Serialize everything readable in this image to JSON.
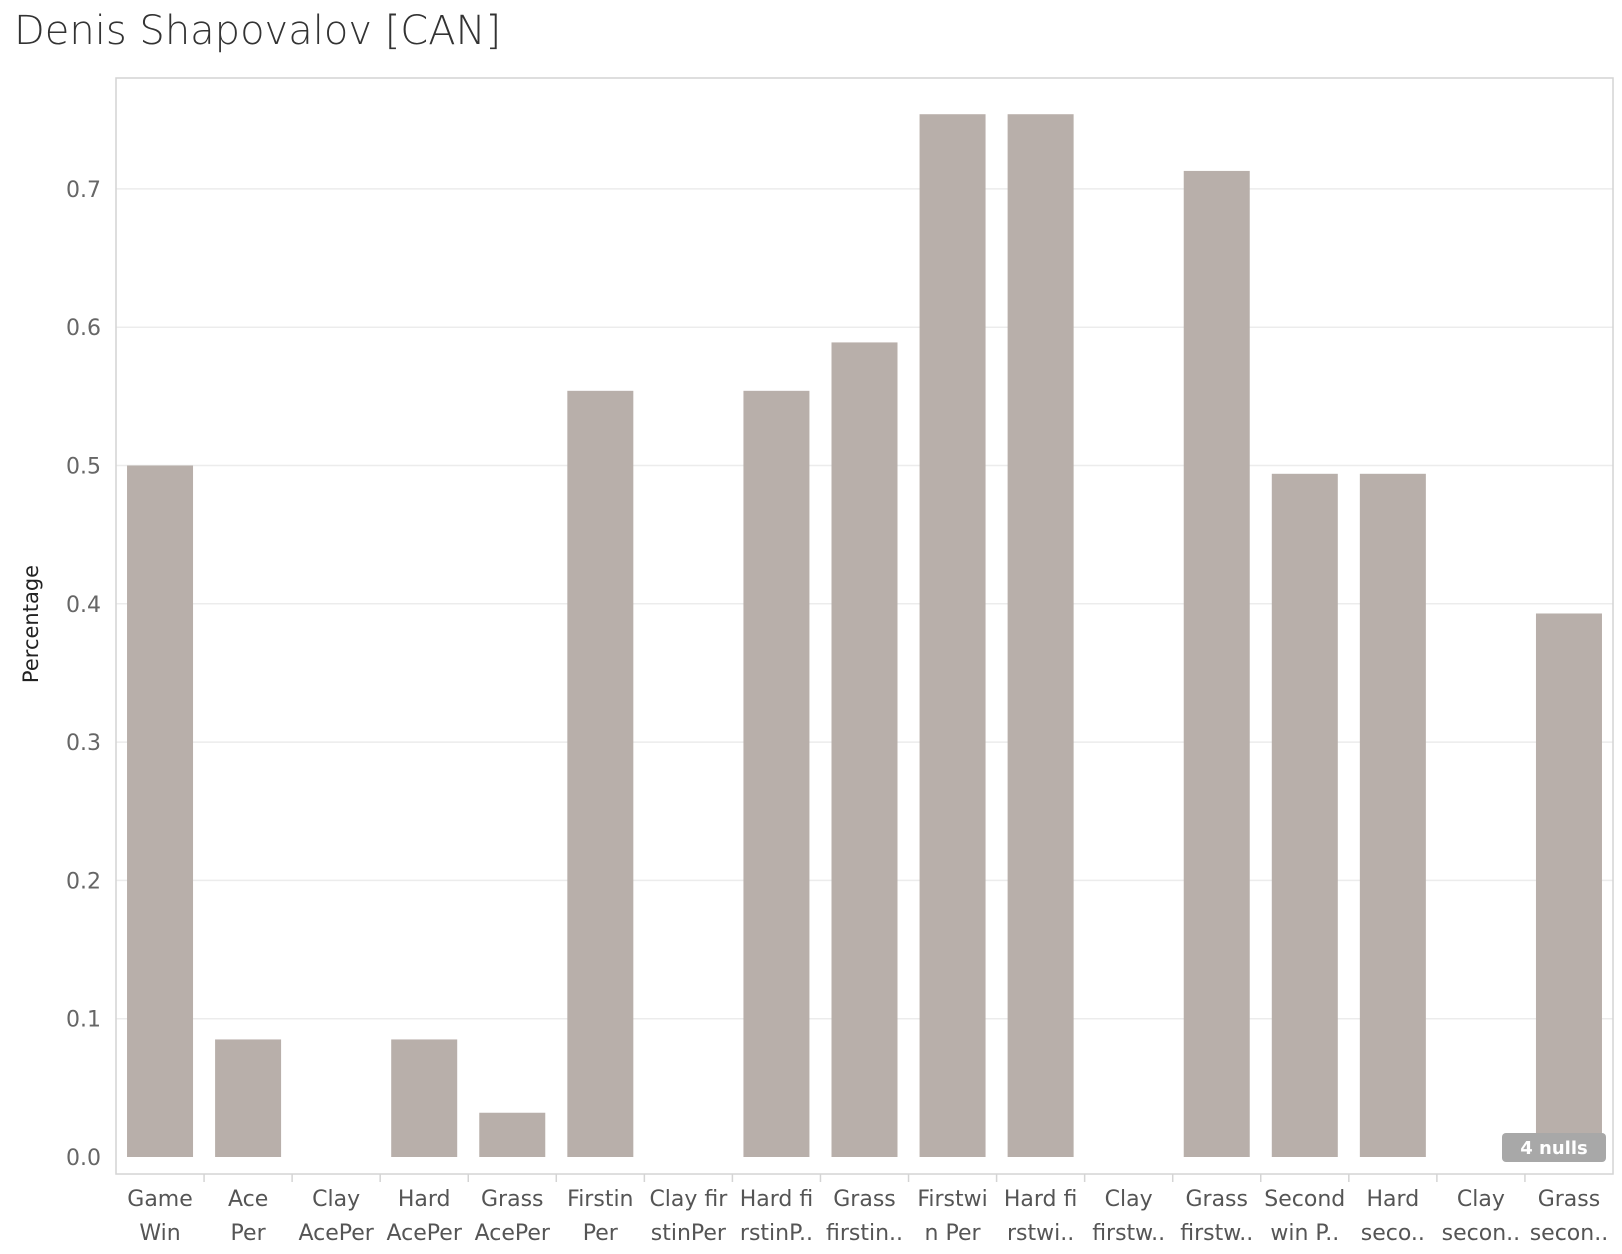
{
  "title": "Denis Shapovalov [CAN]",
  "chart_data": {
    "type": "bar",
    "title": "Denis Shapovalov [CAN]",
    "xlabel": "",
    "ylabel": "Percentage",
    "ylim": [
      0,
      0.79
    ],
    "yticks": [
      "0.0",
      "0.1",
      "0.2",
      "0.3",
      "0.4",
      "0.5",
      "0.6",
      "0.7"
    ],
    "grid": true,
    "bar_color": "#b8afaa",
    "categories": [
      [
        "Game",
        "Win"
      ],
      [
        "Ace",
        "Per"
      ],
      [
        "Clay",
        "AcePer"
      ],
      [
        "Hard",
        "AcePer"
      ],
      [
        "Grass",
        "AcePer"
      ],
      [
        "Firstin",
        "Per"
      ],
      [
        "Clay fir",
        "stinPer"
      ],
      [
        "Hard fi",
        "rstinP.."
      ],
      [
        "Grass",
        "firstin.."
      ],
      [
        "Firstwi",
        "n Per"
      ],
      [
        "Hard fi",
        "rstwi.."
      ],
      [
        "Clay",
        "firstw.."
      ],
      [
        "Grass",
        "firstw.."
      ],
      [
        "Second",
        "win P.."
      ],
      [
        "Hard",
        "seco.."
      ],
      [
        "Clay",
        "secon.."
      ],
      [
        "Grass",
        "secon.."
      ]
    ],
    "values": [
      0.5,
      0.085,
      null,
      0.085,
      0.032,
      0.554,
      null,
      0.554,
      0.589,
      0.754,
      0.754,
      null,
      0.713,
      0.494,
      0.494,
      null,
      0.393
    ],
    "nulls_indicator": "4 nulls"
  }
}
